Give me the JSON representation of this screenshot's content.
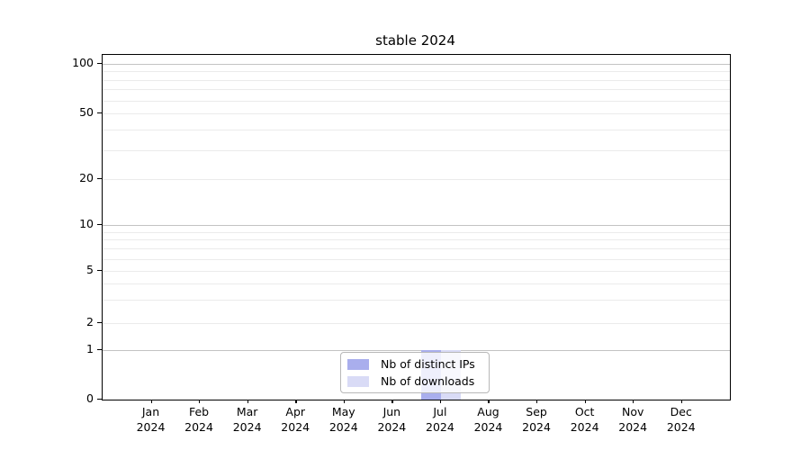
{
  "title": "stable 2024",
  "chart_data": {
    "type": "bar",
    "title": "stable 2024",
    "categories": [
      "Jan",
      "Feb",
      "Mar",
      "Apr",
      "May",
      "Jun",
      "Jul",
      "Aug",
      "Sep",
      "Oct",
      "Nov",
      "Dec"
    ],
    "x_year": "2024",
    "series": [
      {
        "name": "Nb of distinct IPs",
        "color": "#a9aeed",
        "values": [
          0,
          0,
          0,
          0,
          0,
          0,
          1,
          0,
          0,
          0,
          0,
          0
        ]
      },
      {
        "name": "Nb of downloads",
        "color": "#d9dbf6",
        "values": [
          0,
          0,
          0,
          0,
          0,
          0,
          1,
          0,
          0,
          0,
          0,
          0
        ]
      }
    ],
    "xlabel": "",
    "ylabel": "",
    "ylim": [
      0,
      110
    ],
    "y_scale": "log-like (0,1,2,5,10,20,50,100)",
    "y_tick_labels": [
      "100",
      "50",
      "20",
      "10",
      "5",
      "2",
      "1",
      "0"
    ],
    "y_tick_values": [
      100,
      50,
      20,
      10,
      5,
      2,
      1,
      0
    ],
    "y_major_gridlines": [
      100,
      10,
      1
    ],
    "y_minor_gridlines": [
      90,
      80,
      70,
      60,
      50,
      40,
      30,
      20,
      9,
      8,
      7,
      6,
      5,
      4,
      3,
      2
    ],
    "grid": true,
    "legend_position": "lower center inside plot"
  },
  "colors": {
    "bar_distinct_ips": "#a9aeed",
    "bar_downloads": "#d9dbf6",
    "gridline_minor": "#ebebeb",
    "gridline_major": "#c3c3c3",
    "axis": "#000000",
    "legend_border": "#b8b8b8"
  }
}
